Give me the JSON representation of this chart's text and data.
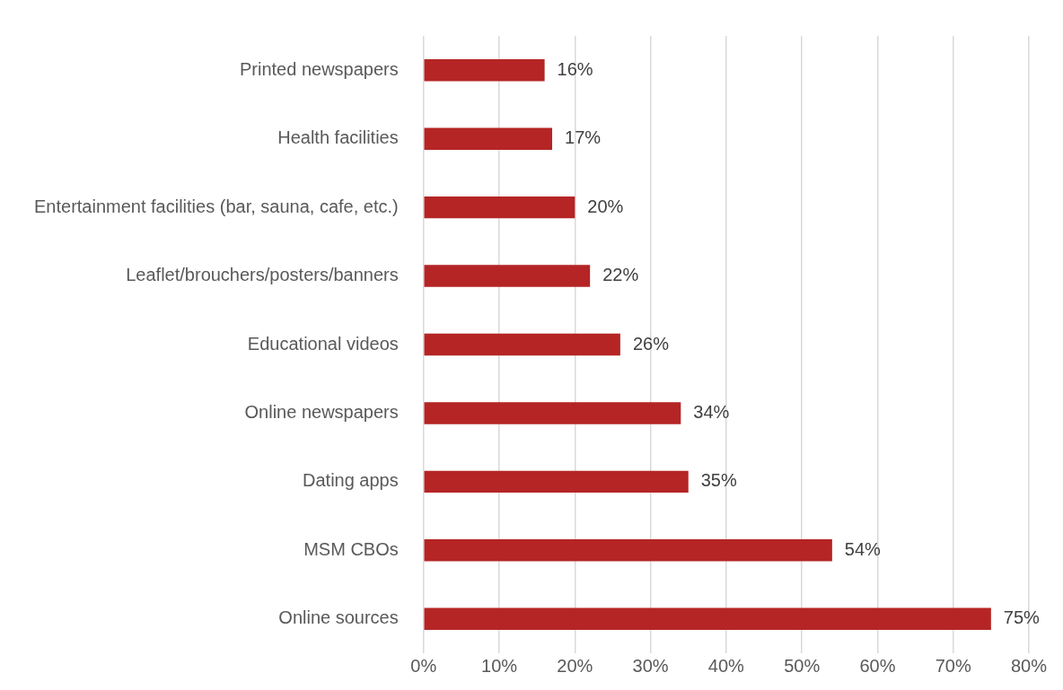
{
  "chart_data": {
    "type": "bar",
    "orientation": "horizontal",
    "categories": [
      "Printed newspapers",
      "Health facilities",
      "Entertainment facilities (bar, sauna, cafe, etc.)",
      "Leaflet/brouchers/posters/banners",
      "Educational videos",
      "Online newspapers",
      "Dating apps",
      "MSM CBOs",
      "Online sources"
    ],
    "values": [
      16,
      17,
      20,
      22,
      26,
      34,
      35,
      54,
      75
    ],
    "value_labels": [
      "16%",
      "17%",
      "20%",
      "22%",
      "26%",
      "34%",
      "35%",
      "54%",
      "75%"
    ],
    "color": "#b52525",
    "xlim": [
      0,
      80
    ],
    "xticks": [
      {
        "value": 0,
        "label": "0%"
      },
      {
        "value": 10,
        "label": "10%"
      },
      {
        "value": 20,
        "label": "20%"
      },
      {
        "value": 30,
        "label": "30%"
      },
      {
        "value": 40,
        "label": "40%"
      },
      {
        "value": 50,
        "label": "50%"
      },
      {
        "value": 60,
        "label": "60%"
      },
      {
        "value": 70,
        "label": "70%"
      },
      {
        "value": 80,
        "label": "80%"
      }
    ],
    "grid": "x",
    "legend": false
  }
}
